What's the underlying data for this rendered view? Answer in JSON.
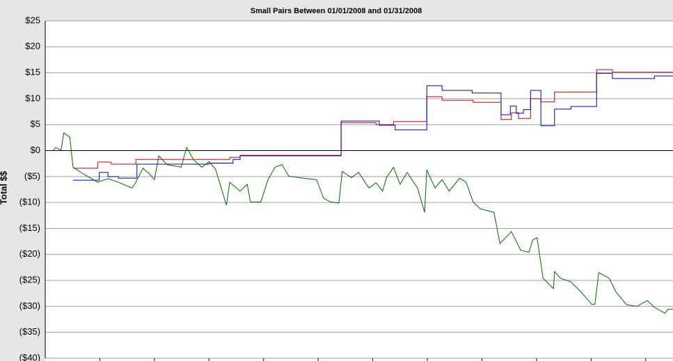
{
  "chart_data": {
    "type": "line",
    "title": "Small Pairs Between 01/01/2008 and 01/31/2008",
    "y_label": "Total $$",
    "xlim": [
      0,
      11.5
    ],
    "xticks": [
      1,
      2,
      3,
      4,
      5,
      6,
      7,
      8,
      9,
      10,
      11
    ],
    "ylim": [
      -40,
      25
    ],
    "yticks": [
      {
        "value": -40,
        "label": "($40)"
      },
      {
        "value": -35,
        "label": "($35)"
      },
      {
        "value": -30,
        "label": "($30)"
      },
      {
        "value": -25,
        "label": "($25)"
      },
      {
        "value": -20,
        "label": "($20)"
      },
      {
        "value": -15,
        "label": "($15)"
      },
      {
        "value": -10,
        "label": "($10)"
      },
      {
        "value": -5,
        "label": "($5)"
      },
      {
        "value": 0,
        "label": "$0"
      },
      {
        "value": 5,
        "label": "$5"
      },
      {
        "value": 10,
        "label": "$10"
      },
      {
        "value": 15,
        "label": "$15"
      },
      {
        "value": 20,
        "label": "$20"
      },
      {
        "value": 25,
        "label": "$25"
      }
    ],
    "grid": true,
    "series": [
      {
        "color": "#cc0000",
        "step": true,
        "x": [
          0.51,
          0.96,
          1.21,
          1.66,
          3.38,
          3.57,
          5.42,
          6.06,
          6.38,
          6.99,
          7.27,
          7.84,
          8.35,
          8.54,
          8.67,
          8.89,
          9.08,
          9.33,
          10.1,
          10.39,
          11.5
        ],
        "values": [
          -3.4,
          -2.2,
          -2.6,
          -1.7,
          -1.3,
          -0.9,
          5.4,
          5.0,
          5.6,
          10.4,
          9.7,
          9.3,
          6.0,
          7.3,
          6.2,
          10.0,
          9.4,
          11.3,
          15.6,
          15.1,
          15.0
        ]
      },
      {
        "color": "#0000cc",
        "step": true,
        "x": [
          0.51,
          0.99,
          1.15,
          1.34,
          1.68,
          3.0,
          3.44,
          3.57,
          5.42,
          6.12,
          6.41,
          6.99,
          7.27,
          7.82,
          8.35,
          8.52,
          8.63,
          8.76,
          8.89,
          9.08,
          9.33,
          9.63,
          10.1,
          10.39,
          11.16,
          11.5
        ],
        "values": [
          -5.7,
          -4.2,
          -5.0,
          -5.3,
          -2.6,
          -2.4,
          -1.7,
          -1.0,
          5.7,
          4.9,
          4.0,
          12.5,
          11.6,
          11.1,
          6.9,
          8.6,
          7.2,
          7.9,
          11.6,
          4.8,
          8.0,
          8.5,
          14.9,
          13.9,
          14.4,
          14.4
        ]
      },
      {
        "color": "#006600",
        "step": false,
        "x": [
          0.13,
          0.19,
          0.29,
          0.34,
          0.45,
          0.51,
          0.7,
          0.96,
          1.15,
          1.34,
          1.59,
          1.66,
          1.79,
          1.91,
          2.0,
          2.08,
          2.23,
          2.49,
          2.59,
          2.72,
          2.87,
          3.0,
          3.12,
          3.32,
          3.38,
          3.57,
          3.7,
          3.76,
          3.95,
          4.08,
          4.21,
          4.34,
          4.46,
          4.65,
          4.97,
          5.1,
          5.23,
          5.38,
          5.44,
          5.61,
          5.74,
          5.93,
          6.06,
          6.18,
          6.25,
          6.38,
          6.5,
          6.63,
          6.82,
          6.95,
          6.99,
          7.14,
          7.27,
          7.4,
          7.59,
          7.71,
          7.84,
          7.97,
          8.22,
          8.33,
          8.54,
          8.71,
          8.86,
          8.93,
          9.01,
          9.12,
          9.31,
          9.33,
          9.44,
          9.63,
          9.82,
          10.01,
          10.07,
          10.14,
          10.33,
          10.46,
          10.65,
          10.84,
          11.03,
          11.16,
          11.35,
          11.41,
          11.5
        ],
        "values": [
          -0.1,
          0.6,
          0.1,
          3.4,
          2.6,
          -3.2,
          -4.5,
          -6.1,
          -5.4,
          -6.1,
          -7.2,
          -6.1,
          -3.4,
          -4.5,
          -5.6,
          -1.0,
          -2.7,
          -3.2,
          0.6,
          -1.8,
          -3.2,
          -2.1,
          -3.6,
          -10.5,
          -6.1,
          -7.8,
          -6.5,
          -9.9,
          -9.9,
          -5.6,
          -3.2,
          -2.7,
          -4.9,
          -5.2,
          -5.6,
          -9.2,
          -9.9,
          -10.1,
          -4.0,
          -5.2,
          -4.2,
          -7.2,
          -6.2,
          -7.8,
          -5.2,
          -3.2,
          -6.5,
          -4.2,
          -7.2,
          -11.9,
          -3.7,
          -7.2,
          -5.6,
          -7.8,
          -5.3,
          -6.1,
          -9.9,
          -11.2,
          -11.9,
          -17.9,
          -15.6,
          -19.2,
          -19.6,
          -17.2,
          -16.8,
          -24.6,
          -26.6,
          -23.3,
          -24.6,
          -25.3,
          -27.3,
          -29.6,
          -29.6,
          -23.5,
          -24.6,
          -27.3,
          -29.7,
          -30.0,
          -28.9,
          -30.2,
          -31.3,
          -30.6,
          -30.5
        ]
      }
    ]
  }
}
